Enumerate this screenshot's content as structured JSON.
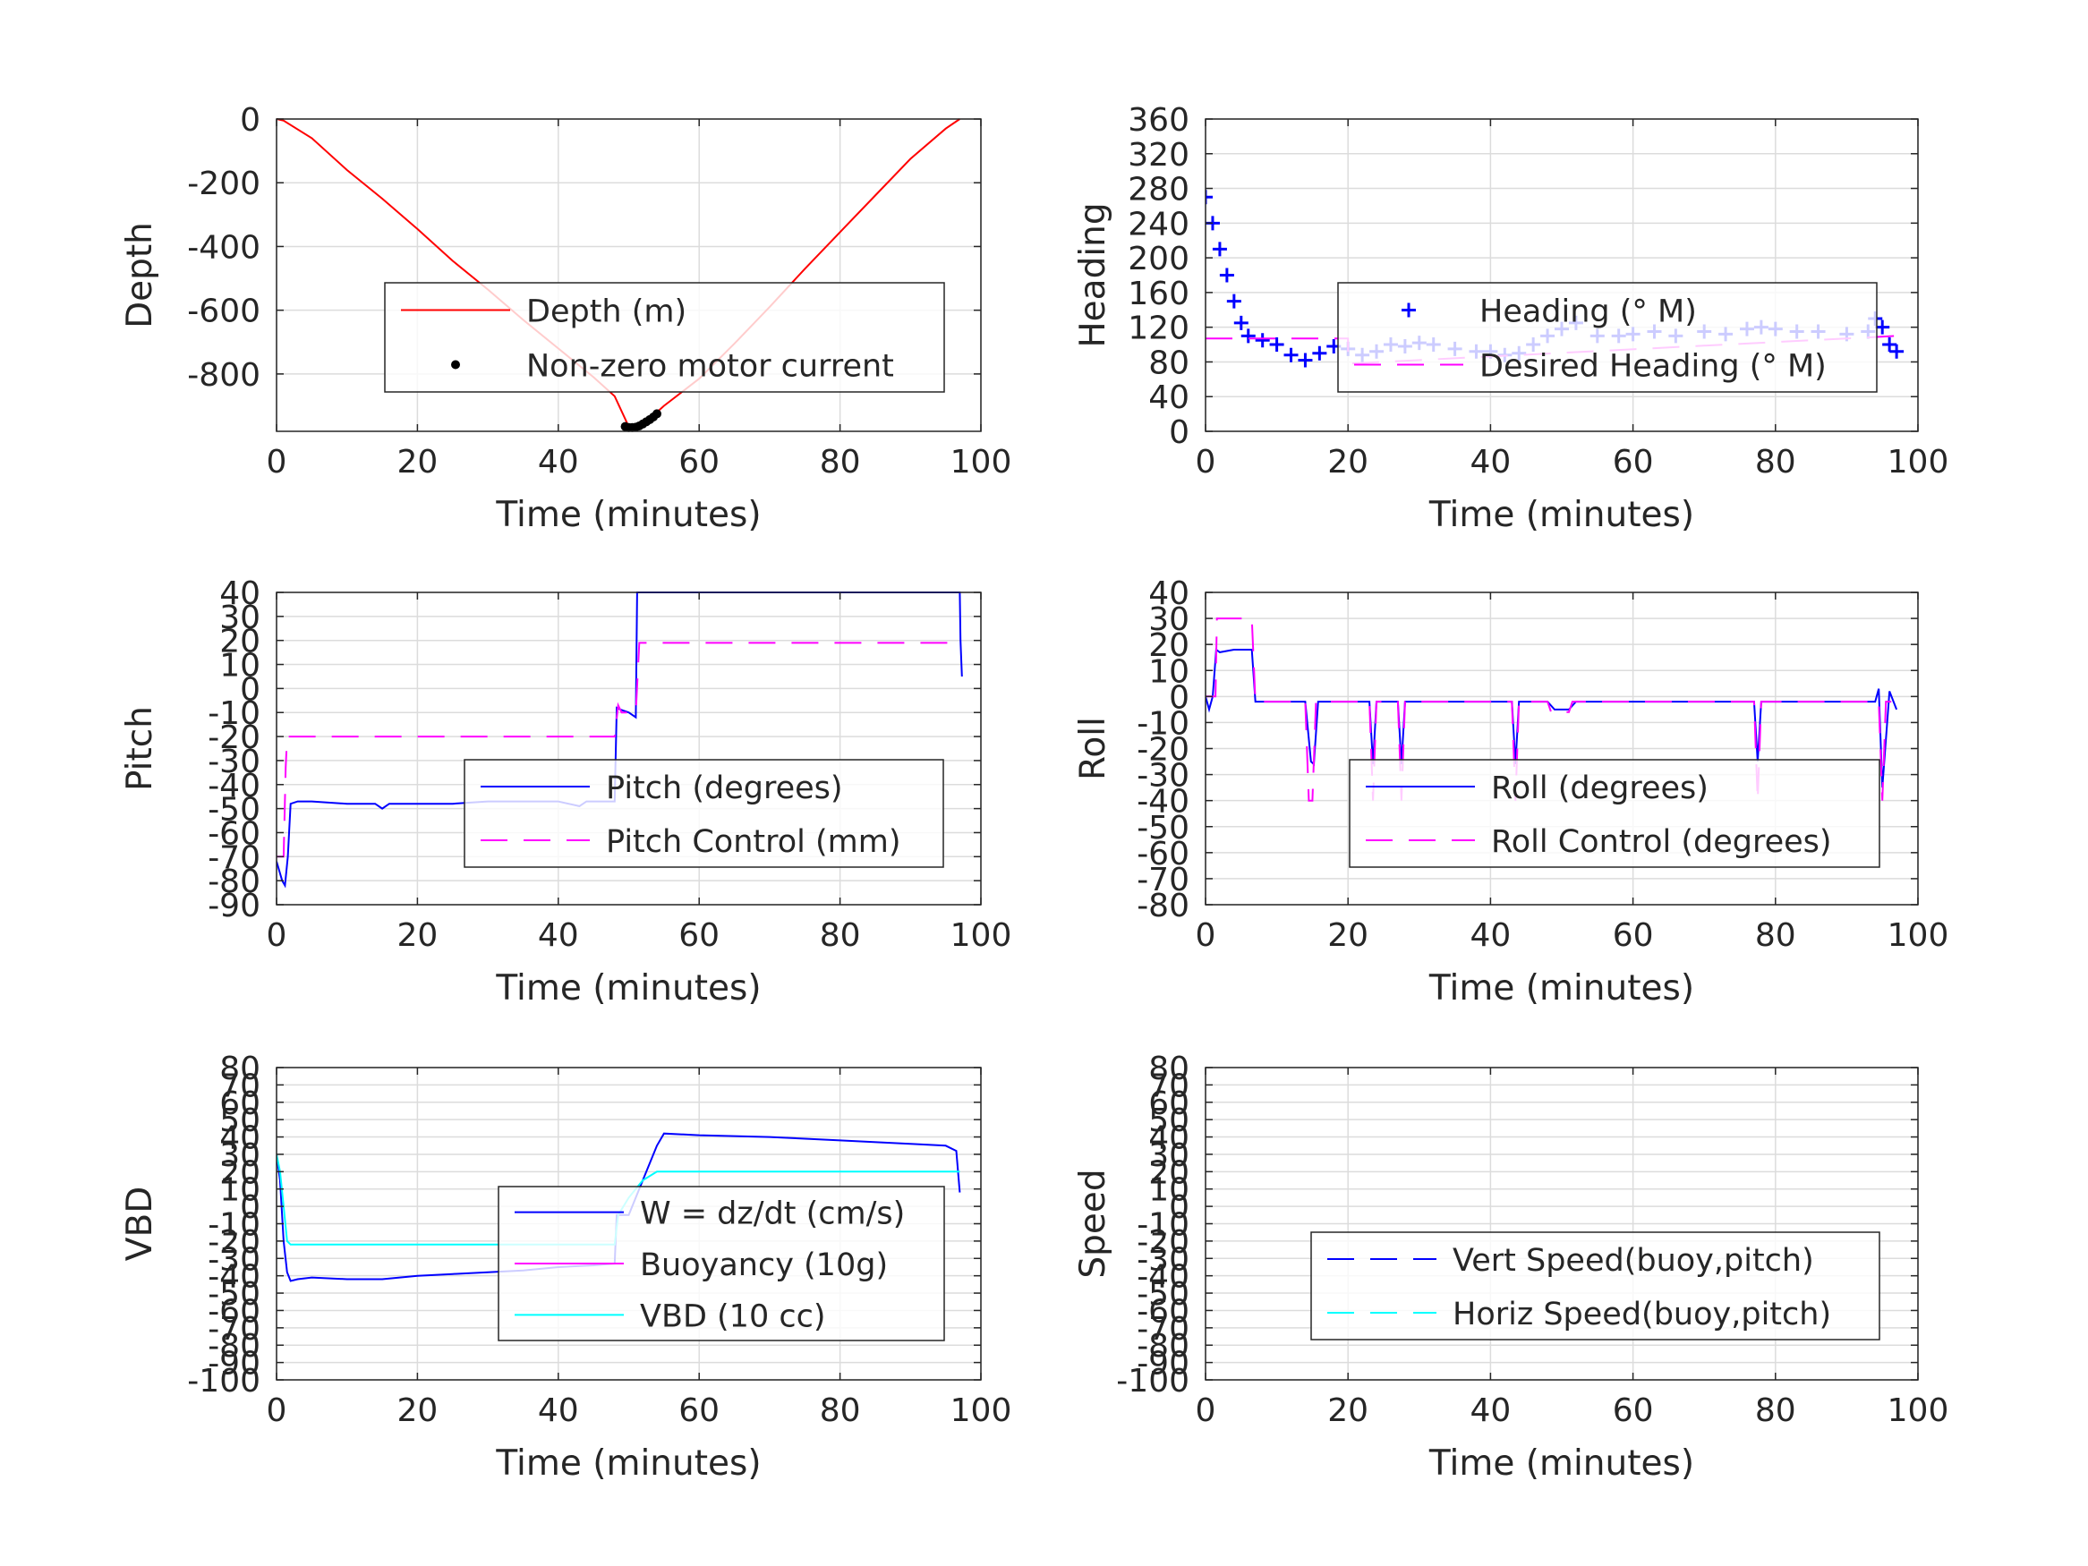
{
  "chart_data": [
    {
      "type": "line",
      "xlabel": "Time (minutes)",
      "ylabel": "Depth",
      "xlim": [
        0,
        100
      ],
      "ylim": [
        -980,
        0
      ],
      "xticks": [
        0,
        20,
        40,
        60,
        80,
        100
      ],
      "xtick_labels": [
        "0",
        "20",
        "40",
        "60",
        "80",
        "100"
      ],
      "yticks": [
        0,
        -200,
        -400,
        -600,
        -800
      ],
      "ytick_labels": [
        "0",
        "-200",
        "-400",
        "-600",
        "-800"
      ],
      "grid": true,
      "legend_position": "center-right",
      "series": [
        {
          "name": "Depth (m)",
          "color": "#ff0000",
          "style": "solid",
          "marker": "none",
          "x": [
            0,
            1,
            5,
            10,
            15,
            20,
            25,
            30,
            35,
            40,
            45,
            48,
            50,
            52,
            55,
            60,
            65,
            70,
            75,
            80,
            85,
            90,
            95,
            97
          ],
          "y": [
            0,
            -5,
            -60,
            -160,
            -250,
            -345,
            -445,
            -535,
            -630,
            -720,
            -810,
            -870,
            -965,
            -960,
            -900,
            -815,
            -705,
            -590,
            -470,
            -355,
            -240,
            -125,
            -30,
            0
          ]
        },
        {
          "name": "Non-zero motor current",
          "color": "#000000",
          "style": "none",
          "marker": "dot",
          "x": [
            49.5,
            50,
            50.5,
            51,
            51.5,
            52,
            52.5,
            53,
            53.5,
            54
          ],
          "y": [
            -965,
            -968,
            -968,
            -967,
            -963,
            -957,
            -950,
            -943,
            -935,
            -925
          ]
        }
      ]
    },
    {
      "type": "line",
      "xlabel": "Time (minutes)",
      "ylabel": "Heading",
      "xlim": [
        0,
        100
      ],
      "ylim": [
        0,
        360
      ],
      "xticks": [
        0,
        20,
        40,
        60,
        80,
        100
      ],
      "xtick_labels": [
        "0",
        "20",
        "40",
        "60",
        "80",
        "100"
      ],
      "yticks": [
        0,
        40,
        80,
        120,
        160,
        200,
        240,
        280,
        320,
        360
      ],
      "ytick_labels": [
        "0",
        "40",
        "80",
        "120",
        "160",
        "200",
        "240",
        "280",
        "320",
        "360"
      ],
      "grid": true,
      "legend_position": "center-right",
      "series": [
        {
          "name": "Heading (° M)",
          "color": "#0000ff",
          "style": "none",
          "marker": "plus",
          "x": [
            0,
            1,
            2,
            3,
            4,
            5,
            6,
            8,
            10,
            12,
            14,
            16,
            18,
            20,
            22,
            24,
            26,
            28,
            30,
            32,
            35,
            38,
            40,
            42,
            44,
            46,
            48,
            50,
            52,
            55,
            58,
            60,
            63,
            66,
            70,
            73,
            76,
            78,
            80,
            83,
            86,
            90,
            93,
            94,
            95,
            96,
            97
          ],
          "y": [
            270,
            240,
            210,
            180,
            150,
            125,
            110,
            105,
            100,
            88,
            82,
            90,
            98,
            95,
            88,
            92,
            100,
            98,
            102,
            100,
            95,
            92,
            92,
            88,
            90,
            100,
            110,
            118,
            125,
            110,
            110,
            112,
            115,
            110,
            115,
            112,
            118,
            120,
            118,
            115,
            115,
            112,
            115,
            130,
            120,
            100,
            92
          ]
        },
        {
          "name": "Desired Heading (° M)",
          "color": "#ff00ff",
          "style": "dashed",
          "marker": "none",
          "x": [
            0,
            20,
            20,
            97
          ],
          "y": [
            107,
            107,
            78,
            110
          ]
        }
      ]
    },
    {
      "type": "line",
      "xlabel": "Time (minutes)",
      "ylabel": "Pitch",
      "xlim": [
        0,
        100
      ],
      "ylim": [
        -90,
        40
      ],
      "xticks": [
        0,
        20,
        40,
        60,
        80,
        100
      ],
      "xtick_labels": [
        "0",
        "20",
        "40",
        "60",
        "80",
        "100"
      ],
      "yticks": [
        -90,
        -80,
        -70,
        -60,
        -50,
        -40,
        -30,
        -20,
        -10,
        0,
        10,
        20,
        30,
        40
      ],
      "ytick_labels": [
        "-90",
        "-80",
        "-70",
        "-60",
        "-50",
        "-40",
        "-30",
        "-20",
        "-10",
        "0",
        "10",
        "20",
        "30",
        "40"
      ],
      "grid": true,
      "legend_position": "center-right",
      "series": [
        {
          "name": "Pitch (degrees)",
          "color": "#0000ff",
          "style": "solid",
          "marker": "none",
          "x": [
            0,
            0.8,
            1.2,
            1.6,
            2,
            3,
            5,
            10,
            14,
            15,
            16,
            20,
            25,
            30,
            40,
            43,
            44,
            45,
            48,
            48.3,
            49,
            50,
            51,
            51.2,
            97,
            97.1,
            97.3
          ],
          "y": [
            -72,
            -80,
            -82,
            -70,
            -48,
            -47,
            -47,
            -48,
            -48,
            -50,
            -48,
            -48,
            -48,
            -47,
            -47,
            -49,
            -47,
            -47,
            -47,
            -8,
            -9,
            -10,
            -12,
            40,
            40,
            20,
            5
          ]
        },
        {
          "name": "Pitch Control (mm)",
          "color": "#ff00ff",
          "style": "dashed",
          "marker": "none",
          "x": [
            0,
            1,
            1.3,
            1.5,
            2,
            40,
            45,
            48,
            48.5,
            49,
            51,
            51.5,
            97
          ],
          "y": [
            -70,
            -70,
            -33,
            -20,
            -20,
            -20,
            -20,
            -20,
            -7,
            -10,
            -10,
            19,
            19
          ]
        }
      ]
    },
    {
      "type": "line",
      "xlabel": "Time (minutes)",
      "ylabel": "Roll",
      "xlim": [
        0,
        100
      ],
      "ylim": [
        -80,
        40
      ],
      "xticks": [
        0,
        20,
        40,
        60,
        80,
        100
      ],
      "xtick_labels": [
        "0",
        "20",
        "40",
        "60",
        "80",
        "100"
      ],
      "yticks": [
        -80,
        -70,
        -60,
        -50,
        -40,
        -30,
        -20,
        -10,
        0,
        10,
        20,
        30,
        40
      ],
      "ytick_labels": [
        "-80",
        "-70",
        "-60",
        "-50",
        "-40",
        "-30",
        "-20",
        "-10",
        "0",
        "10",
        "20",
        "30",
        "40"
      ],
      "grid": true,
      "legend_position": "center-right",
      "series": [
        {
          "name": "Roll (degrees)",
          "color": "#0000ff",
          "style": "solid",
          "marker": "none",
          "x": [
            0,
            0.5,
            1,
            1.5,
            2,
            4,
            6.5,
            7,
            10,
            14,
            14.8,
            15.2,
            15.8,
            16,
            20,
            23,
            23.5,
            24,
            27,
            27.5,
            28,
            30,
            40,
            43,
            43.5,
            44,
            48,
            49,
            51,
            52,
            60,
            70,
            77,
            77.5,
            78,
            90,
            94,
            94.5,
            95,
            96,
            97
          ],
          "y": [
            0,
            -5,
            0,
            18,
            17,
            18,
            18,
            -2,
            -2,
            -2,
            -25,
            -26,
            -2,
            -2,
            -2,
            -2,
            -26,
            -2,
            -2,
            -26,
            -2,
            -2,
            -2,
            -2,
            -26,
            -2,
            -2,
            -5,
            -5,
            -2,
            -2,
            -2,
            -2,
            -25,
            -2,
            -2,
            -2,
            3,
            -35,
            2,
            -5
          ]
        },
        {
          "name": "Roll Control (degrees)",
          "color": "#ff00ff",
          "style": "dashed",
          "marker": "none",
          "x": [
            0,
            1.4,
            1.6,
            6,
            6.5,
            7,
            14,
            14.5,
            15,
            15.5,
            16,
            23,
            23.5,
            24,
            27,
            27.5,
            28,
            43,
            43.5,
            44,
            48,
            48.5,
            51,
            51.5,
            77,
            77.5,
            78,
            94.5,
            95,
            95.5,
            97
          ],
          "y": [
            0,
            0,
            30,
            30,
            30,
            -2,
            -2,
            -40,
            -40,
            -2,
            -2,
            -2,
            -40,
            -2,
            -2,
            -40,
            -2,
            -2,
            -40,
            -2,
            -2,
            -6,
            -6,
            -2,
            -2,
            -40,
            -2,
            -2,
            -40,
            -2,
            -2
          ]
        }
      ]
    },
    {
      "type": "line",
      "xlabel": "Time (minutes)",
      "ylabel": "VBD",
      "xlim": [
        0,
        100
      ],
      "ylim": [
        -100,
        80
      ],
      "xticks": [
        0,
        20,
        40,
        60,
        80,
        100
      ],
      "xtick_labels": [
        "0",
        "20",
        "40",
        "60",
        "80",
        "100"
      ],
      "yticks": [
        -100,
        -90,
        -80,
        -70,
        -60,
        -50,
        -40,
        -30,
        -20,
        -10,
        0,
        10,
        20,
        30,
        40,
        50,
        60,
        70,
        80
      ],
      "ytick_labels": [
        "-100",
        "-90",
        "-80",
        "-70",
        "-60",
        "-50",
        "-40",
        "-30",
        "-20",
        "-10",
        "0",
        "10",
        "20",
        "30",
        "40",
        "50",
        "60",
        "70",
        "80"
      ],
      "grid": true,
      "legend_position": "center-right",
      "series": [
        {
          "name": "W = dz/dt (cm/s)",
          "color": "#0000ff",
          "style": "solid",
          "marker": "none",
          "x": [
            0,
            0.5,
            1,
            1.5,
            2,
            3,
            5,
            10,
            15,
            20,
            25,
            30,
            35,
            40,
            45,
            48,
            48.3,
            50,
            52,
            54,
            55,
            60,
            70,
            80,
            90,
            95,
            96.5,
            97
          ],
          "y": [
            30,
            15,
            -20,
            -38,
            -43,
            -42,
            -41,
            -42,
            -42,
            -40,
            -39,
            -38,
            -37,
            -35,
            -34,
            -33,
            -5,
            -5,
            15,
            35,
            42,
            41,
            40,
            38,
            36,
            35,
            32,
            8
          ]
        },
        {
          "name": "Buoyancy (10g)",
          "color": "#ff00ff",
          "style": "solid",
          "marker": "none",
          "x": [],
          "y": []
        },
        {
          "name": "VBD (10 cc)",
          "color": "#00ffff",
          "style": "solid",
          "marker": "none",
          "x": [
            0,
            0.5,
            1,
            1.5,
            2,
            10,
            20,
            30,
            40,
            48,
            48.5,
            50,
            52,
            54,
            55,
            60,
            70,
            80,
            90,
            97
          ],
          "y": [
            30,
            20,
            0,
            -20,
            -22,
            -22,
            -22,
            -22,
            -22,
            -22,
            -5,
            5,
            15,
            20,
            20,
            20,
            20,
            20,
            20,
            20
          ]
        }
      ]
    },
    {
      "type": "line",
      "xlabel": "Time (minutes)",
      "ylabel": "Speed",
      "xlim": [
        0,
        100
      ],
      "ylim": [
        -100,
        80
      ],
      "xticks": [
        0,
        20,
        40,
        60,
        80,
        100
      ],
      "xtick_labels": [
        "0",
        "20",
        "40",
        "60",
        "80",
        "100"
      ],
      "yticks": [
        -100,
        -90,
        -80,
        -70,
        -60,
        -50,
        -40,
        -30,
        -20,
        -10,
        0,
        10,
        20,
        30,
        40,
        50,
        60,
        70,
        80
      ],
      "ytick_labels": [
        "-100",
        "-90",
        "-80",
        "-70",
        "-60",
        "-50",
        "-40",
        "-30",
        "-20",
        "-10",
        "0",
        "10",
        "20",
        "30",
        "40",
        "50",
        "60",
        "70",
        "80"
      ],
      "grid": true,
      "legend_position": "center-right",
      "series": [
        {
          "name": "Vert Speed(buoy,pitch)",
          "color": "#0000ff",
          "style": "dashed",
          "marker": "none",
          "x": [],
          "y": []
        },
        {
          "name": "Horiz Speed(buoy,pitch)",
          "color": "#00ffff",
          "style": "dashed",
          "marker": "none",
          "x": [],
          "y": []
        }
      ]
    }
  ]
}
